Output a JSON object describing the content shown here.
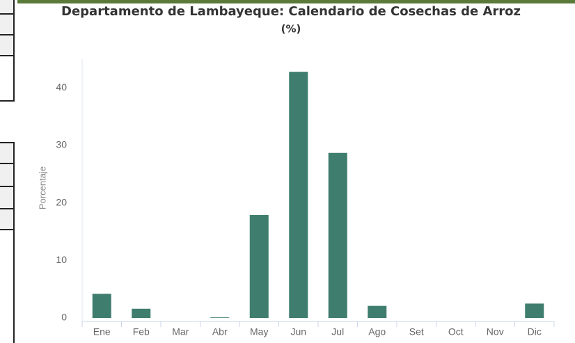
{
  "chart_data": {
    "type": "bar",
    "title": "Departamento de Lambayeque: Calendario de Cosechas de Arroz",
    "subtitle": "(%)",
    "y_label": "Porcentaje",
    "categories": [
      "Ene",
      "Feb",
      "Mar",
      "Abr",
      "May",
      "Jun",
      "Jul",
      "Ago",
      "Set",
      "Oct",
      "Nov",
      "Dic"
    ],
    "values": [
      4.2,
      1.6,
      0,
      0.1,
      17.9,
      42.8,
      28.7,
      2.1,
      0,
      0,
      0,
      2.5
    ],
    "color": "#3f7d6e",
    "ylim": [
      0,
      45
    ],
    "yticks": [
      0,
      10,
      20,
      30,
      40
    ],
    "grid": false
  }
}
